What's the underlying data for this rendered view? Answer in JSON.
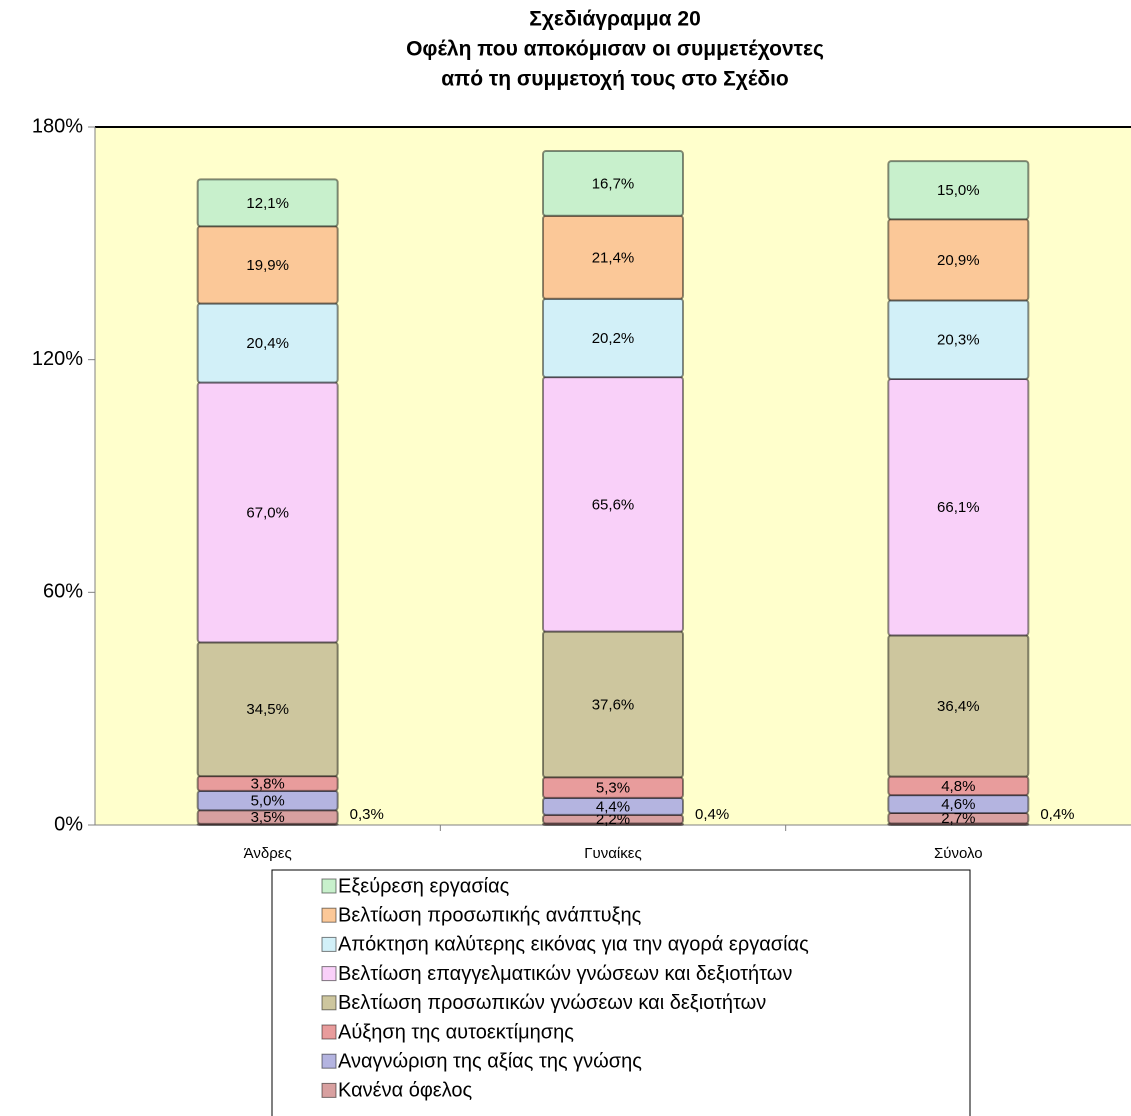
{
  "chart_data": {
    "type": "stacked_bar",
    "title_lines": [
      "Σχεδιάγραμμα 20",
      "Οφέλη που αποκόμισαν οι συμμετέχοντες",
      "από τη συμμετοχή τους στο Σχέδιο"
    ],
    "categories": [
      "Άνδρες",
      "Γυναίκες",
      "Σύνολο"
    ],
    "ylim": [
      0,
      180
    ],
    "yticks": [
      {
        "value": 0,
        "label": "0%"
      },
      {
        "value": 60,
        "label": "60%"
      },
      {
        "value": 120,
        "label": "120%"
      },
      {
        "value": 180,
        "label": "180%"
      }
    ],
    "background": "#ffffcc",
    "series": [
      {
        "color": "#c89090",
        "values": [
          0.3,
          0.4,
          0.4
        ],
        "value_labels": [
          "0,3%",
          "0,4%",
          "0,4%"
        ]
      },
      {
        "name": "Κανένα όφελος",
        "color": "#d8a0a0",
        "values": [
          3.5,
          2.2,
          2.7
        ],
        "value_labels": [
          "3,5%",
          "2,2%",
          "2,7%"
        ]
      },
      {
        "name": "Αναγνώριση της αξίας της γνώσης",
        "color": "#b4b4e0",
        "values": [
          5.0,
          4.4,
          4.6
        ],
        "value_labels": [
          "5,0%",
          "4,4%",
          "4,6%"
        ]
      },
      {
        "name": "Αύξηση της αυτοεκτίμησης",
        "color": "#e89c9c",
        "values": [
          3.8,
          5.3,
          4.8
        ],
        "value_labels": [
          "3,8%",
          "5,3%",
          "4,8%"
        ]
      },
      {
        "name": "Βελτίωση προσωπικών γνώσεων και δεξιοτήτων",
        "color": "#cdc69e",
        "values": [
          34.5,
          37.6,
          36.4
        ],
        "value_labels": [
          "34,5%",
          "37,6%",
          "36,4%"
        ]
      },
      {
        "name": "Βελτίωση επαγγελματικών γνώσεων και δεξιοτήτων",
        "color": "#f9d0f9",
        "values": [
          67.0,
          65.6,
          66.1
        ],
        "value_labels": [
          "67,0%",
          "65,6%",
          "66,1%"
        ]
      },
      {
        "name": "Απόκτηση καλύτερης εικόνας για την αγορά εργασίας",
        "color": "#d2f0f8",
        "values": [
          20.4,
          20.2,
          20.3
        ],
        "value_labels": [
          "20,4%",
          "20,2%",
          "20,3%"
        ]
      },
      {
        "name": "Βελτίωση προσωπικής ανάπτυξης",
        "color": "#fbc898",
        "values": [
          19.9,
          21.4,
          20.9
        ],
        "value_labels": [
          "19,9%",
          "21,4%",
          "20,9%"
        ]
      },
      {
        "name": "Εξεύρεση εργασίας",
        "color": "#c8f0cc",
        "values": [
          12.1,
          16.7,
          15.0
        ],
        "value_labels": [
          "12,1%",
          "16,7%",
          "15,0%"
        ]
      }
    ]
  }
}
